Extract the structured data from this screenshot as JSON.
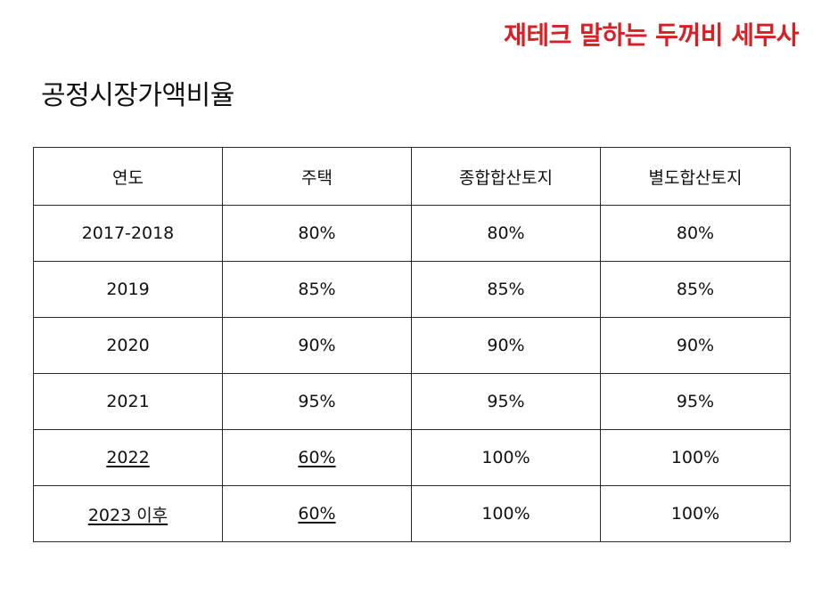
{
  "brand": "재테크 말하는 두꺼비 세무사",
  "title": "공정시장가액비율",
  "table": {
    "headers": [
      "연도",
      "주택",
      "종합합산토지",
      "별도합산토지"
    ],
    "rows": [
      {
        "cells": [
          "2017-2018",
          "80%",
          "80%",
          "80%"
        ],
        "emphasized": [
          false,
          false,
          false,
          false
        ]
      },
      {
        "cells": [
          "2019",
          "85%",
          "85%",
          "85%"
        ],
        "emphasized": [
          false,
          false,
          false,
          false
        ]
      },
      {
        "cells": [
          "2020",
          "90%",
          "90%",
          "90%"
        ],
        "emphasized": [
          false,
          false,
          false,
          false
        ]
      },
      {
        "cells": [
          "2021",
          "95%",
          "95%",
          "95%"
        ],
        "emphasized": [
          false,
          false,
          false,
          false
        ]
      },
      {
        "cells": [
          "2022",
          "60%",
          "100%",
          "100%"
        ],
        "emphasized": [
          true,
          true,
          false,
          false
        ]
      },
      {
        "cells": [
          "2023 이후",
          "60%",
          "100%",
          "100%"
        ],
        "emphasized": [
          true,
          true,
          false,
          false
        ]
      }
    ]
  },
  "colors": {
    "brand": "#d81f26",
    "text": "#111111",
    "border": "#2a2a2a",
    "background": "#ffffff"
  }
}
